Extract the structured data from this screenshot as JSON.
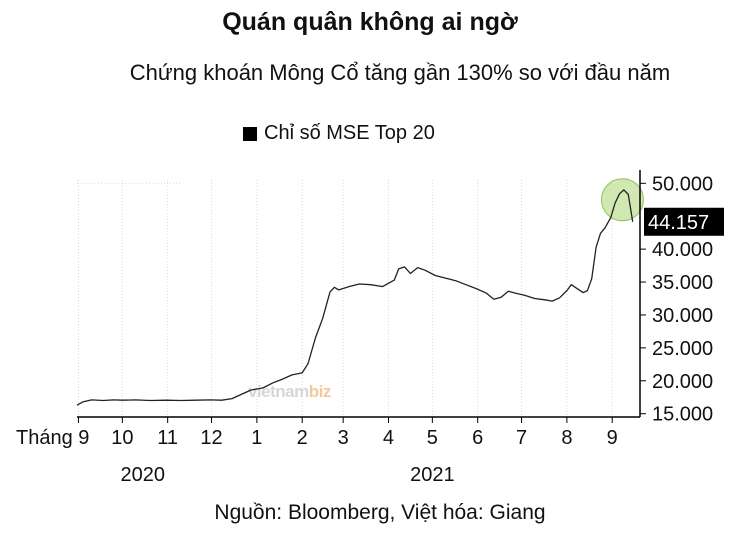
{
  "header": {
    "title": "Quán quân không ai ngờ",
    "subtitle": "Chứng khoán Mông Cổ tăng gần 130% so với đầu năm"
  },
  "footer": {
    "source": "Nguồn: Bloomberg, Việt hóa: Giang"
  },
  "watermark": {
    "text_main": "vietnam",
    "text_accent": "biz"
  },
  "colors": {
    "line": "#222222",
    "grid": "#d9d9d9",
    "axis": "#000000",
    "highlight_fill": "#c5e2a0",
    "highlight_stroke": "#8fc45a",
    "last_value_bg": "#000000",
    "last_value_text": "#ffffff"
  },
  "chart_data": {
    "type": "line",
    "series": [
      {
        "name": "Chỉ số MSE Top 20",
        "points": [
          [
            "2020-08-31",
            16300
          ],
          [
            "2020-09-04",
            16800
          ],
          [
            "2020-09-10",
            17100
          ],
          [
            "2020-09-18",
            17000
          ],
          [
            "2020-09-25",
            17100
          ],
          [
            "2020-10-01",
            17050
          ],
          [
            "2020-10-10",
            17100
          ],
          [
            "2020-10-20",
            17000
          ],
          [
            "2020-10-31",
            17050
          ],
          [
            "2020-11-10",
            17000
          ],
          [
            "2020-11-20",
            17050
          ],
          [
            "2020-11-30",
            17100
          ],
          [
            "2020-12-08",
            17050
          ],
          [
            "2020-12-15",
            17300
          ],
          [
            "2020-12-22",
            18000
          ],
          [
            "2020-12-28",
            18600
          ],
          [
            "2021-01-05",
            18900
          ],
          [
            "2021-01-12",
            19700
          ],
          [
            "2021-01-18",
            20200
          ],
          [
            "2021-01-25",
            20900
          ],
          [
            "2021-02-01",
            21200
          ],
          [
            "2021-02-05",
            22600
          ],
          [
            "2021-02-10",
            26500
          ],
          [
            "2021-02-15",
            29500
          ],
          [
            "2021-02-20",
            33500
          ],
          [
            "2021-02-23",
            34200
          ],
          [
            "2021-02-26",
            33800
          ],
          [
            "2021-03-05",
            34300
          ],
          [
            "2021-03-12",
            34700
          ],
          [
            "2021-03-20",
            34600
          ],
          [
            "2021-03-28",
            34300
          ],
          [
            "2021-04-05",
            35300
          ],
          [
            "2021-04-08",
            37000
          ],
          [
            "2021-04-12",
            37300
          ],
          [
            "2021-04-16",
            36300
          ],
          [
            "2021-04-21",
            37200
          ],
          [
            "2021-04-26",
            36800
          ],
          [
            "2021-05-03",
            36000
          ],
          [
            "2021-05-10",
            35600
          ],
          [
            "2021-05-17",
            35200
          ],
          [
            "2021-05-24",
            34600
          ],
          [
            "2021-05-31",
            34000
          ],
          [
            "2021-06-07",
            33300
          ],
          [
            "2021-06-12",
            32400
          ],
          [
            "2021-06-17",
            32700
          ],
          [
            "2021-06-22",
            33600
          ],
          [
            "2021-06-27",
            33300
          ],
          [
            "2021-07-03",
            33000
          ],
          [
            "2021-07-10",
            32500
          ],
          [
            "2021-07-17",
            32300
          ],
          [
            "2021-07-22",
            32100
          ],
          [
            "2021-07-27",
            32600
          ],
          [
            "2021-08-01",
            33700
          ],
          [
            "2021-08-04",
            34600
          ],
          [
            "2021-08-08",
            34000
          ],
          [
            "2021-08-12",
            33400
          ],
          [
            "2021-08-15",
            33700
          ],
          [
            "2021-08-18",
            35500
          ],
          [
            "2021-08-21",
            40300
          ],
          [
            "2021-08-24",
            42400
          ],
          [
            "2021-08-27",
            43200
          ],
          [
            "2021-08-31",
            44800
          ],
          [
            "2021-09-03",
            47000
          ],
          [
            "2021-09-06",
            48400
          ],
          [
            "2021-09-09",
            49000
          ],
          [
            "2021-09-12",
            48300
          ],
          [
            "2021-09-15",
            44157
          ]
        ]
      }
    ],
    "last_value_label": "44.157",
    "x_ticks": [
      {
        "date": "2020-09-01",
        "label": "Tháng 9"
      },
      {
        "date": "2020-10-01",
        "label": "10"
      },
      {
        "date": "2020-11-01",
        "label": "11"
      },
      {
        "date": "2020-12-01",
        "label": "12"
      },
      {
        "date": "2021-01-01",
        "label": "1"
      },
      {
        "date": "2021-02-01",
        "label": "2"
      },
      {
        "date": "2021-03-01",
        "label": "3"
      },
      {
        "date": "2021-04-01",
        "label": "4"
      },
      {
        "date": "2021-05-01",
        "label": "5"
      },
      {
        "date": "2021-06-01",
        "label": "6"
      },
      {
        "date": "2021-07-01",
        "label": "7"
      },
      {
        "date": "2021-08-01",
        "label": "8"
      },
      {
        "date": "2021-09-01",
        "label": "9"
      }
    ],
    "year_labels": [
      {
        "date": "2020-10-15",
        "label": "2020"
      },
      {
        "date": "2021-05-01",
        "label": "2021"
      }
    ],
    "y_ticks": [
      {
        "value": 15000,
        "label": "15.000"
      },
      {
        "value": 20000,
        "label": "20.000"
      },
      {
        "value": 25000,
        "label": "25.000"
      },
      {
        "value": 30000,
        "label": "30.000"
      },
      {
        "value": 35000,
        "label": "35.000"
      },
      {
        "value": 40000,
        "label": "40.000"
      },
      {
        "value": 50000,
        "label": "50.000"
      }
    ],
    "x_range": [
      "2020-08-31",
      "2021-09-20"
    ],
    "y_range": [
      14500,
      50500
    ],
    "y_axis_side": "right",
    "grid": "vertical-dotted",
    "legend_position": "top-left",
    "highlight": {
      "date": "2021-09-08",
      "value": 47500
    }
  }
}
